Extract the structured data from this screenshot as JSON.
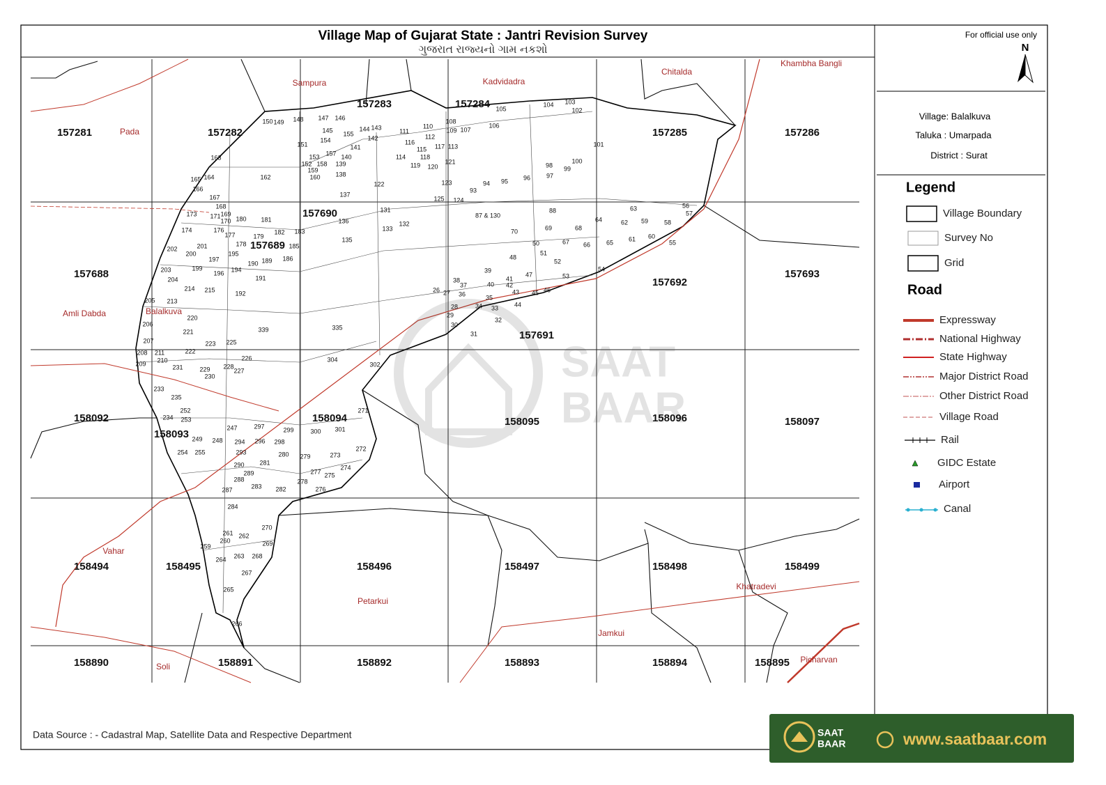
{
  "header": {
    "title": "Village Map of Gujarat State : Jantri Revision Survey",
    "subtitle": "ગુજરાત રાજ્યનો ગામ નકશો"
  },
  "official": "For official use only",
  "north": "N",
  "info": [
    "Village: Balalkuva",
    "Taluka : Umarpada",
    "District : Surat"
  ],
  "legend": {
    "title": "Legend",
    "layers": [
      "Village Boundary",
      "Survey No",
      "Grid"
    ],
    "road_title": "Road",
    "roads": [
      "Expressway",
      "National Highway",
      "State Highway",
      "Major District Road",
      "Other District Road",
      "Village Road"
    ],
    "others": [
      "Rail",
      "GIDC Estate",
      "Airport",
      "Canal"
    ]
  },
  "grid_ids": [
    "157281",
    "157282",
    "157283",
    "157284",
    "157285",
    "157286",
    "157688",
    "157689",
    "157690",
    "157691",
    "157692",
    "157693",
    "158092",
    "158093",
    "158094",
    "158095",
    "158096",
    "158097",
    "158494",
    "158495",
    "158496",
    "158497",
    "158498",
    "158499",
    "158890",
    "158891",
    "158892",
    "158893",
    "158894",
    "158895"
  ],
  "places": [
    "Sampura",
    "Kadvidadra",
    "Chitalda",
    "Khambha Bangli",
    "Pada",
    "Amli Dabda",
    "Balalkuva",
    "Vahar",
    "Petarkui",
    "Khatradevi",
    "Jamkui",
    "Soli",
    "Picharvan"
  ],
  "survey_numbers": [
    "104",
    "103",
    "102",
    "105",
    "106",
    "101",
    "110",
    "107",
    "108",
    "109",
    "111",
    "112",
    "116",
    "115",
    "117",
    "113",
    "114",
    "118",
    "119",
    "120",
    "121",
    "122",
    "123",
    "124",
    "125",
    "93",
    "94",
    "95",
    "96",
    "97",
    "98",
    "99",
    "100",
    "87 & 130",
    "88",
    "70",
    "69",
    "68",
    "67",
    "66",
    "65",
    "64",
    "63",
    "62",
    "59",
    "61",
    "60",
    "58",
    "55",
    "56",
    "57",
    "54",
    "53",
    "52",
    "51",
    "50",
    "48",
    "47",
    "46",
    "45",
    "44",
    "43",
    "42",
    "41",
    "40",
    "39",
    "38",
    "37",
    "36",
    "35",
    "34",
    "33",
    "32",
    "31",
    "30",
    "29",
    "28",
    "27",
    "26",
    "135",
    "136",
    "137",
    "138",
    "133",
    "131",
    "132",
    "162",
    "163",
    "164",
    "173",
    "174",
    "181",
    "180",
    "202",
    "200",
    "201",
    "203",
    "204",
    "214",
    "215",
    "192",
    "213",
    "220",
    "221",
    "222",
    "223",
    "225",
    "226",
    "339",
    "335",
    "304",
    "302",
    "271",
    "301",
    "300",
    "299",
    "298",
    "297",
    "296",
    "294",
    "293",
    "290",
    "289",
    "288",
    "287",
    "284",
    "283",
    "282",
    "281",
    "280",
    "279",
    "278",
    "277",
    "276",
    "275",
    "274",
    "273",
    "272",
    "270",
    "269",
    "268",
    "267",
    "266",
    "265",
    "264",
    "263",
    "262",
    "261",
    "260",
    "259",
    "255",
    "254",
    "253",
    "252",
    "249",
    "248",
    "247",
    "235",
    "234",
    "233",
    "231",
    "230",
    "229",
    "228",
    "227",
    "210",
    "211",
    "209",
    "208",
    "207",
    "206",
    "205",
    "191",
    "190",
    "189",
    "186",
    "185",
    "183",
    "182",
    "179",
    "178",
    "177",
    "176",
    "196",
    "194",
    "197",
    "199",
    "195",
    "154",
    "155",
    "157",
    "158",
    "153",
    "152",
    "151",
    "150",
    "149",
    "148",
    "147",
    "146",
    "145",
    "144",
    "143",
    "142",
    "141",
    "140",
    "139",
    "160",
    "159",
    "165",
    "166",
    "167",
    "168",
    "169",
    "170",
    "171"
  ],
  "footer": {
    "source": "Data Source : - Cadastral Map, Satellite Data and Respective Department"
  },
  "watermark": [
    "SAAT",
    "BAAR"
  ],
  "badge": {
    "line1": "SAAT",
    "line2": "BAAR",
    "url": "www.saatbaar.com"
  }
}
